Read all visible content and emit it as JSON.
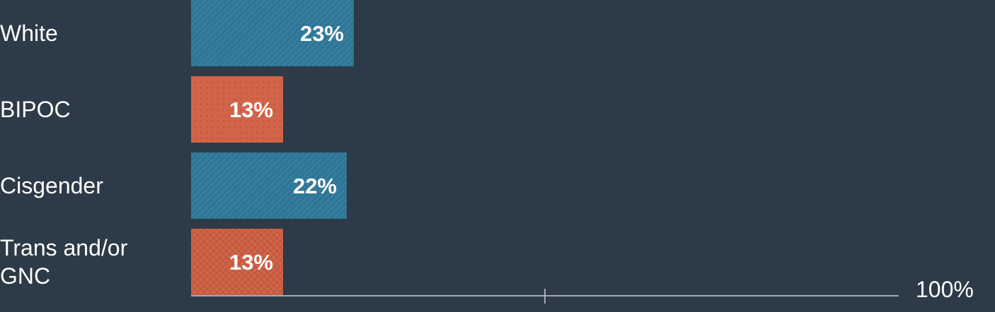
{
  "colors": {
    "background": "#2d3a47",
    "blue": "#2e7596",
    "orange": "#d2644a",
    "axis": "#c8cdd2",
    "text": "#ffffff"
  },
  "chart_data": {
    "type": "bar",
    "orientation": "horizontal",
    "categories": [
      "White",
      "BIPOC",
      "Cisgender",
      "Trans and/or GNC"
    ],
    "category_lines": [
      [
        "White"
      ],
      [
        "BIPOC"
      ],
      [
        "Cisgender"
      ],
      [
        "Trans and/or",
        "GNC"
      ]
    ],
    "values": [
      23,
      13,
      22,
      13
    ],
    "value_labels": [
      "23%",
      "13%",
      "22%",
      "13%"
    ],
    "bar_colors": [
      "blue",
      "orange",
      "blue",
      "orange"
    ],
    "bar_patterns": [
      "diagonal-lines",
      "dots",
      "diagonal-lines",
      "crosshatch"
    ],
    "xlim": [
      0,
      100
    ],
    "axis_end_label": "100%",
    "grid": false
  }
}
